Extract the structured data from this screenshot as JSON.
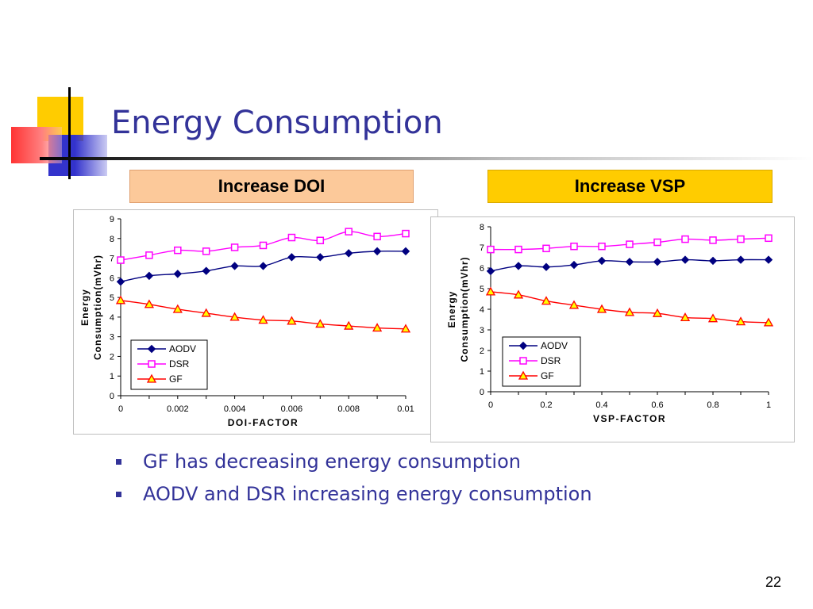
{
  "slide": {
    "title": "Energy Consumption",
    "page_number": "22",
    "tag_left": "Increase DOI",
    "tag_right": "Increase VSP",
    "bullets": [
      "GF has decreasing energy consumption",
      "AODV and DSR increasing energy consumption"
    ]
  },
  "colors": {
    "title": "#333399",
    "AODV": "#000080",
    "DSR": "#FF00FF",
    "GF": "#FF0000",
    "GF_marker_fill": "#FFFF00",
    "tag_left_bg": "#FCC99A",
    "tag_right_bg": "#FFCC00"
  },
  "chart_data": [
    {
      "type": "line",
      "xlabel": "DOI-FACTOR",
      "ylabel": "Energy Consumption(mVhr)",
      "ylabel_lines": [
        "Energy",
        "Consumption(mVhr)"
      ],
      "x": [
        0,
        0.001,
        0.002,
        0.003,
        0.004,
        0.005,
        0.006,
        0.007,
        0.008,
        0.009,
        0.01
      ],
      "xticks": [
        0,
        0.002,
        0.004,
        0.006,
        0.008,
        0.01
      ],
      "xtick_labels": [
        "0",
        "0.002",
        "0.004",
        "0.006",
        "0.008",
        "0.01"
      ],
      "xlim": [
        0,
        0.01
      ],
      "ylim": [
        0,
        9
      ],
      "yticks": [
        0,
        1,
        2,
        3,
        4,
        5,
        6,
        7,
        8,
        9
      ],
      "series": [
        {
          "name": "AODV",
          "marker": "diamond",
          "values": [
            5.8,
            6.1,
            6.2,
            6.35,
            6.6,
            6.6,
            7.05,
            7.05,
            7.25,
            7.35,
            7.35
          ]
        },
        {
          "name": "DSR",
          "marker": "square",
          "values": [
            6.9,
            7.15,
            7.4,
            7.35,
            7.55,
            7.65,
            8.05,
            7.9,
            8.35,
            8.1,
            8.25
          ]
        },
        {
          "name": "GF",
          "marker": "triangle",
          "values": [
            4.85,
            4.65,
            4.4,
            4.2,
            4.0,
            3.85,
            3.8,
            3.65,
            3.55,
            3.45,
            3.4
          ]
        }
      ],
      "legend": "bottom-left",
      "grid": false
    },
    {
      "type": "line",
      "xlabel": "VSP-FACTOR",
      "ylabel": "Energy Consumption(mVhr)",
      "ylabel_lines": [
        "Energy",
        "Consumption(mVhr)"
      ],
      "x": [
        0,
        0.1,
        0.2,
        0.3,
        0.4,
        0.5,
        0.6,
        0.7,
        0.8,
        0.9,
        1
      ],
      "xticks": [
        0,
        0.2,
        0.4,
        0.6,
        0.8,
        1
      ],
      "xtick_labels": [
        "0",
        "0.2",
        "0.4",
        "0.6",
        "0.8",
        "1"
      ],
      "xlim": [
        0,
        1
      ],
      "ylim": [
        0,
        8
      ],
      "yticks": [
        0,
        1,
        2,
        3,
        4,
        5,
        6,
        7,
        8
      ],
      "series": [
        {
          "name": "AODV",
          "marker": "diamond",
          "values": [
            5.85,
            6.1,
            6.05,
            6.15,
            6.35,
            6.3,
            6.3,
            6.4,
            6.35,
            6.4,
            6.4
          ]
        },
        {
          "name": "DSR",
          "marker": "square",
          "values": [
            6.9,
            6.9,
            6.95,
            7.05,
            7.05,
            7.15,
            7.25,
            7.4,
            7.35,
            7.4,
            7.45
          ]
        },
        {
          "name": "GF",
          "marker": "triangle",
          "values": [
            4.85,
            4.7,
            4.4,
            4.2,
            4.0,
            3.85,
            3.8,
            3.6,
            3.55,
            3.4,
            3.35
          ]
        }
      ],
      "legend": "bottom-left",
      "grid": false
    }
  ]
}
